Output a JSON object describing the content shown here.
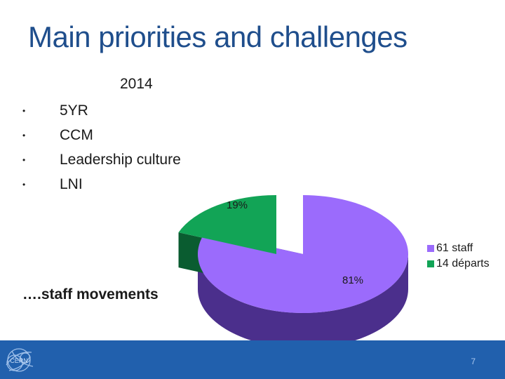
{
  "slide": {
    "title": "Main priorities and challenges",
    "year": "2014",
    "bullets": [
      "5YR",
      "CCM",
      "Leadership culture",
      "LNI"
    ],
    "bullet_glyph": "•",
    "movements_label": "….staff movements",
    "page_number": "7"
  },
  "chart_data": {
    "type": "pie",
    "title": "",
    "slices": [
      {
        "label": "61 staff",
        "value": 81,
        "value_label": "81%",
        "color": "#9b6bfc",
        "side_color": "#4b2f8c"
      },
      {
        "label": "14 départs",
        "value": 19,
        "value_label": "19%",
        "color": "#12a456",
        "side_color": "#0a5c30"
      }
    ],
    "legend_position": "right",
    "style": "3d-exploded",
    "legend": [
      "61 staff",
      "14 départs"
    ]
  },
  "footer": {
    "logo_icon": "cern-logo-icon",
    "color": "#2160ad"
  }
}
